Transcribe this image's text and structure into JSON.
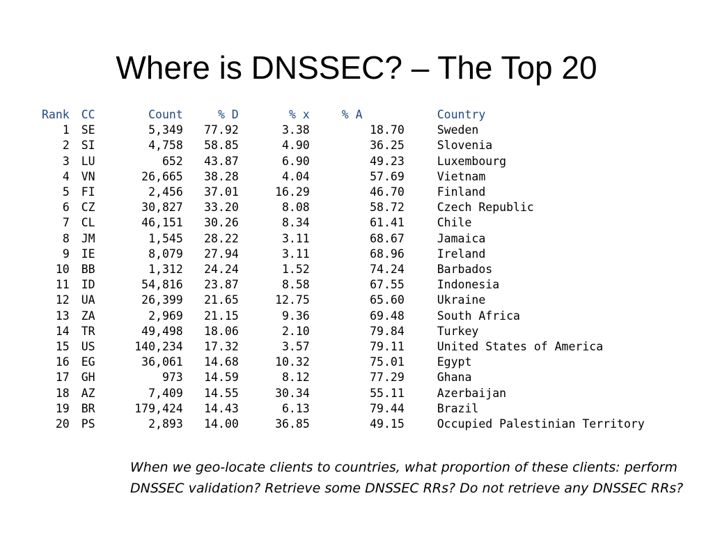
{
  "title": "Where is DNSSEC? – The Top 20",
  "table": {
    "headers": [
      "Rank",
      "CC",
      "Count",
      "% D",
      "% x",
      "% A",
      "Country"
    ],
    "rows": [
      [
        "1",
        "SE",
        "5,349",
        "77.92",
        "3.38",
        "18.70",
        "Sweden"
      ],
      [
        "2",
        "SI",
        "4,758",
        "58.85",
        "4.90",
        "36.25",
        "Slovenia"
      ],
      [
        "3",
        "LU",
        "652",
        "43.87",
        "6.90",
        "49.23",
        "Luxembourg"
      ],
      [
        "4",
        "VN",
        "26,665",
        "38.28",
        "4.04",
        "57.69",
        "Vietnam"
      ],
      [
        "5",
        "FI",
        "2,456",
        "37.01",
        "16.29",
        "46.70",
        "Finland"
      ],
      [
        "6",
        "CZ",
        "30,827",
        "33.20",
        "8.08",
        "58.72",
        "Czech Republic"
      ],
      [
        "7",
        "CL",
        "46,151",
        "30.26",
        "8.34",
        "61.41",
        "Chile"
      ],
      [
        "8",
        "JM",
        "1,545",
        "28.22",
        "3.11",
        "68.67",
        "Jamaica"
      ],
      [
        "9",
        "IE",
        "8,079",
        "27.94",
        "3.11",
        "68.96",
        "Ireland"
      ],
      [
        "10",
        "BB",
        "1,312",
        "24.24",
        "1.52",
        "74.24",
        "Barbados"
      ],
      [
        "11",
        "ID",
        "54,816",
        "23.87",
        "8.58",
        "67.55",
        "Indonesia"
      ],
      [
        "12",
        "UA",
        "26,399",
        "21.65",
        "12.75",
        "65.60",
        "Ukraine"
      ],
      [
        "13",
        "ZA",
        "2,969",
        "21.15",
        "9.36",
        "69.48",
        "South Africa"
      ],
      [
        "14",
        "TR",
        "49,498",
        "18.06",
        "2.10",
        "79.84",
        "Turkey"
      ],
      [
        "15",
        "US",
        "140,234",
        "17.32",
        "3.57",
        "79.11",
        "United States of America"
      ],
      [
        "16",
        "EG",
        "36,061",
        "14.68",
        "10.32",
        "75.01",
        "Egypt"
      ],
      [
        "17",
        "GH",
        "973",
        "14.59",
        "8.12",
        "77.29",
        "Ghana"
      ],
      [
        "18",
        "AZ",
        "7,409",
        "14.55",
        "30.34",
        "55.11",
        "Azerbaijan"
      ],
      [
        "19",
        "BR",
        "179,424",
        "14.43",
        "6.13",
        "79.44",
        "Brazil"
      ],
      [
        "20",
        "PS",
        "2,893",
        "14.00",
        "36.85",
        "49.15",
        "Occupied Palestinian Territory"
      ]
    ]
  },
  "note": "When we geo-locate clients to countries, what proportion of these clients: perform DNSSEC validation? Retrieve some DNSSEC RRs? Do not retrieve any DNSSEC RRs?",
  "colors": {
    "header_text": "#1f497d",
    "body_text": "#000000",
    "background": "#ffffff"
  }
}
